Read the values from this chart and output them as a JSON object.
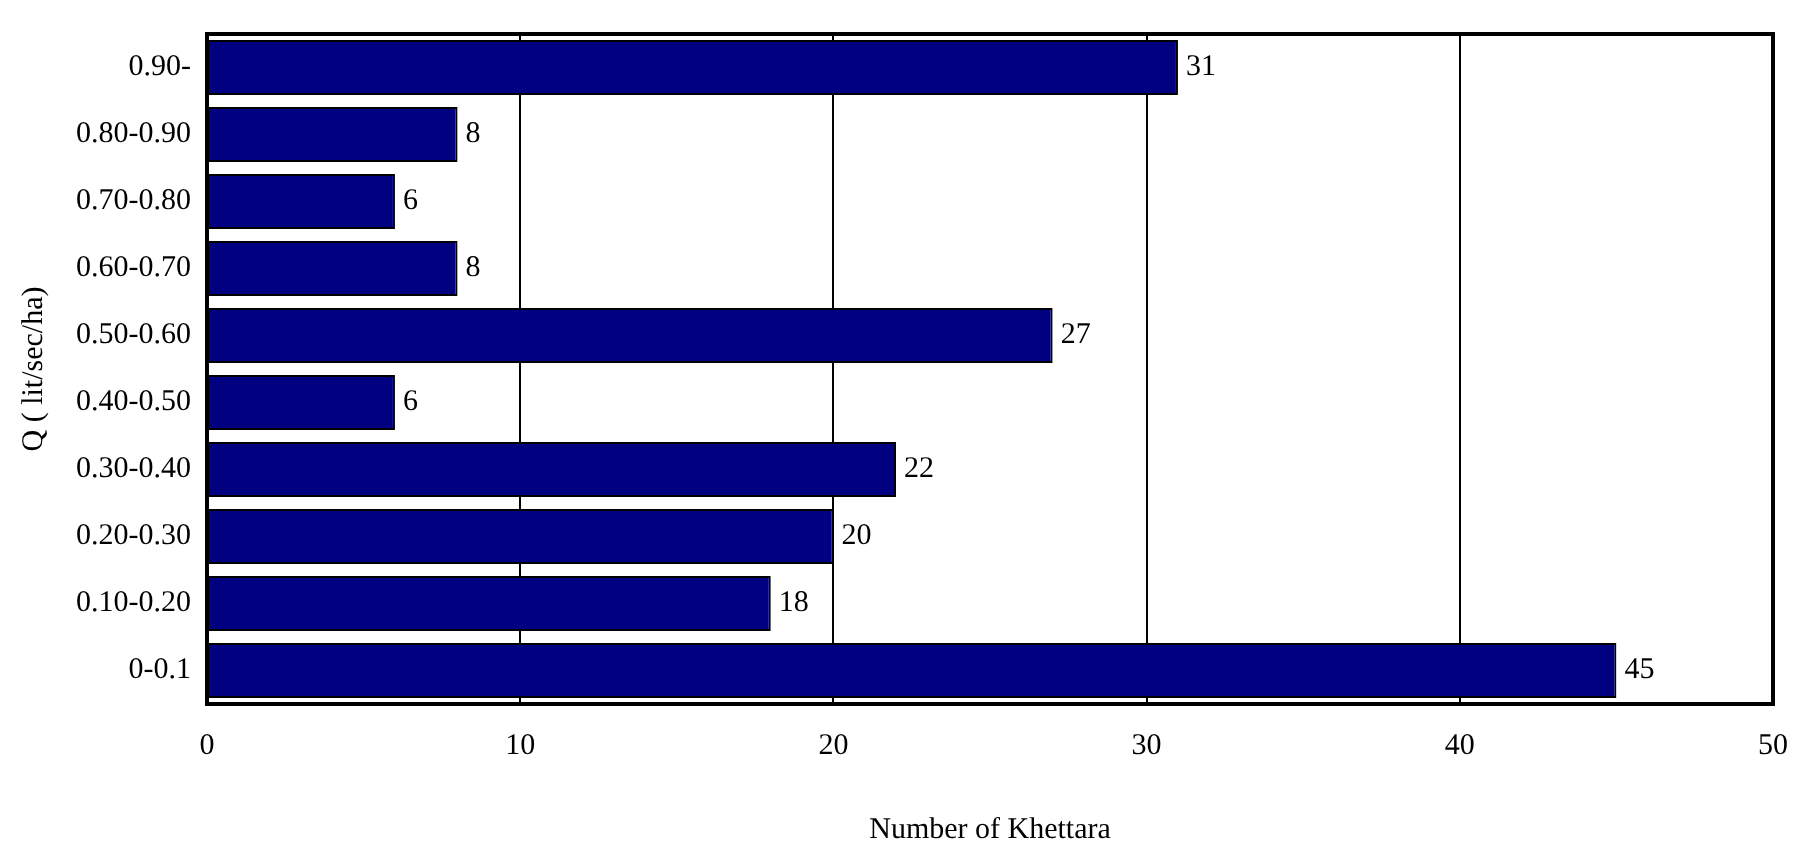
{
  "chart_data": {
    "type": "bar",
    "orientation": "horizontal",
    "categories": [
      "0.90-",
      "0.80-0.90",
      "0.70-0.80",
      "0.60-0.70",
      "0.50-0.60",
      "0.40-0.50",
      "0.30-0.40",
      "0.20-0.30",
      "0.10-0.20",
      "0-0.1"
    ],
    "values": [
      31,
      8,
      6,
      8,
      27,
      6,
      22,
      20,
      18,
      45
    ],
    "color": "#000080",
    "xlabel": "Number of Khettara",
    "ylabel": "Q ( lit/sec/ha)",
    "xlim": [
      0,
      50
    ],
    "xticks": [
      0,
      10,
      20,
      30,
      40,
      50
    ],
    "grid": "x",
    "data_labels": true
  }
}
